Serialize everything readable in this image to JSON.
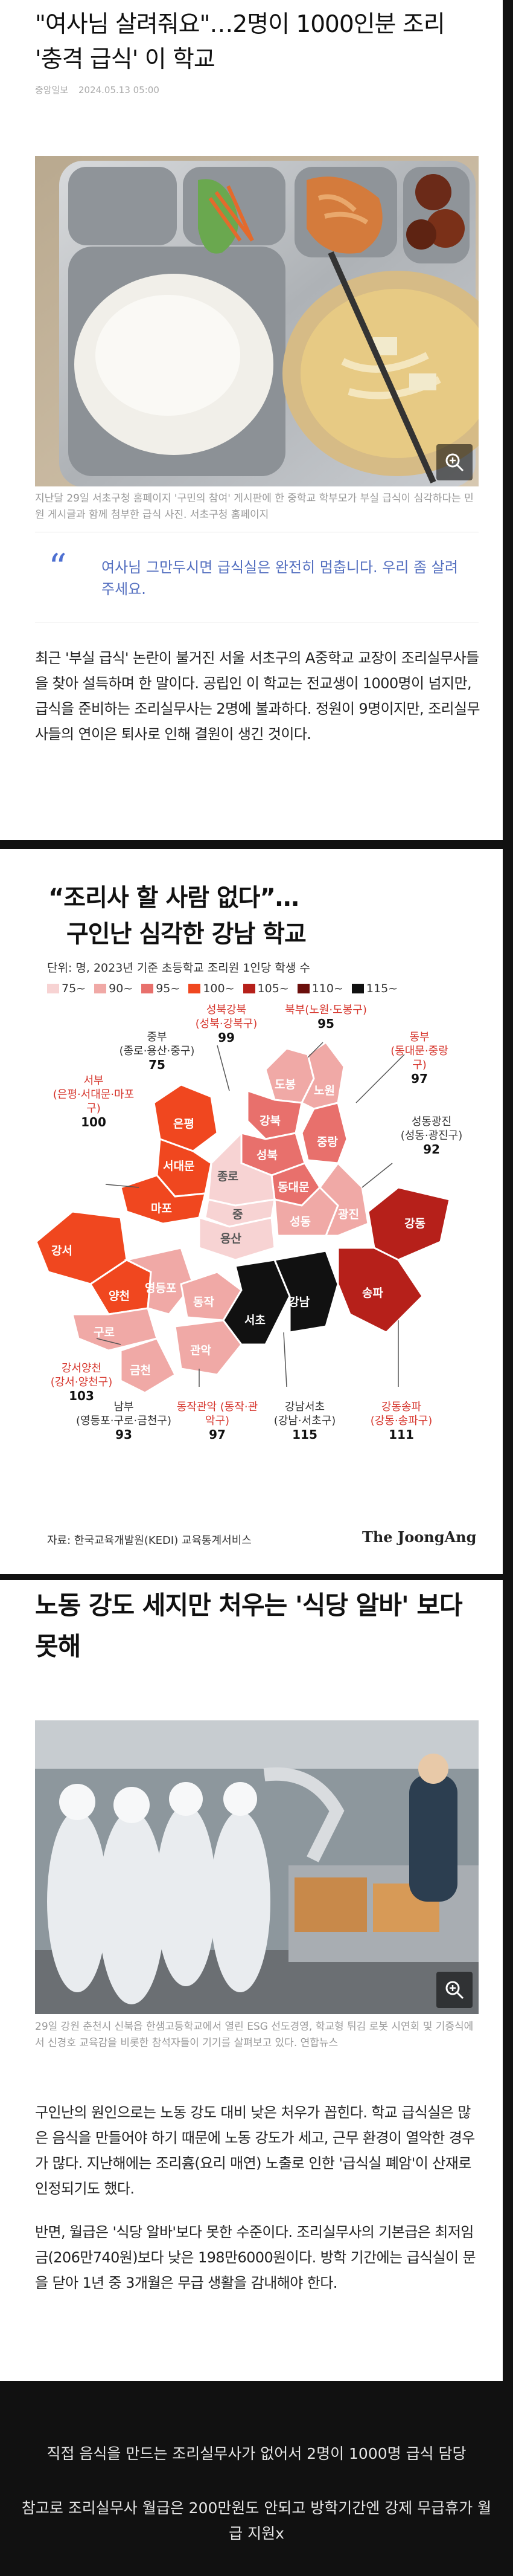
{
  "article1": {
    "headline": "\"여사님 살려줘요\"…2명이 1000인분 조리 '충격 급식' 이 학교",
    "source": "중앙일보",
    "date": "2024.05.13 05:00",
    "photo_caption": "지난달 29일 서초구청 홈페이지 '구민의 참여' 게시판에 한 중학교 학부모가 부실 급식이 심각하다는 민원 게시글과 함께 첨부한 급식 사진. 서초구청 홈페이지",
    "quote": "여사님 그만두시면 급식실은 완전히 멈춥니다. 우리 좀 살려주세요.",
    "paragraph": "최근 '부실 급식' 논란이 불거진 서울 서초구의 A중학교 교장이 조리실무사들을 찾아 설득하며 한 말이다. 공립인 이 학교는 전교생이 1000명이 넘지만, 급식을 준비하는 조리실무사는 2명에 불과하다. 정원이 9명이지만, 조리실무사들의 연이은 퇴사로 인해 결원이 생긴 것이다."
  },
  "infographic": {
    "title": "“조리사 할 사람 없다”…",
    "subtitle": "구인난 심각한 강남 학교",
    "unit": "단위: 명, 2023년 기준 초등학교 조리원 1인당 학생 수",
    "legend": [
      {
        "label": "75~",
        "color": "#f7d3d3"
      },
      {
        "label": "90~",
        "color": "#f0a9a6"
      },
      {
        "label": "95~",
        "color": "#e8706c"
      },
      {
        "label": "100~",
        "color": "#f0471f"
      },
      {
        "label": "105~",
        "color": "#b6201a"
      },
      {
        "label": "110~",
        "color": "#6b0f0c"
      },
      {
        "label": "115~",
        "color": "#111111"
      }
    ],
    "districts": [
      {
        "name": "성북강북",
        "sub": "(성북·강북구)",
        "value": "99"
      },
      {
        "name": "북부(노원·도봉구)",
        "sub": "",
        "value": "95"
      },
      {
        "name": "중부",
        "sub": "(종로·용산·중구)",
        "value": "75"
      },
      {
        "name": "동부",
        "sub": "(동대문·중랑구)",
        "value": "97"
      },
      {
        "name": "서부",
        "sub": "(은평·서대문·마포구)",
        "value": "100"
      },
      {
        "name": "성동광진",
        "sub": "(성동·광진구)",
        "value": "92"
      },
      {
        "name": "강서양천",
        "sub": "(강서·양천구)",
        "value": "103"
      },
      {
        "name": "남부",
        "sub": "(영등포·구로·금천구)",
        "value": "93"
      },
      {
        "name": "동작관악",
        "sub": "(동작·관악구)",
        "value": "97"
      },
      {
        "name": "강남서초",
        "sub": "(강남·서초구)",
        "value": "115"
      },
      {
        "name": "강동송파",
        "sub": "(강동·송파구)",
        "value": "111"
      }
    ],
    "map_names": {
      "dobong": "도봉",
      "nowon": "노원",
      "gangbuk": "강북",
      "eunpyeong": "은평",
      "seongbuk": "성북",
      "jungnang": "중랑",
      "jongno": "종로",
      "dongdaemun": "동대문",
      "seodaemun": "서대문",
      "mapo": "마포",
      "jung": "중",
      "seongdong": "성동",
      "gwangjin": "광진",
      "gangseo": "강서",
      "yongsan": "용산",
      "gangdong": "강동",
      "yangcheon": "양천",
      "yeongdeungpo": "영등포",
      "dongjak": "동작",
      "gangnam": "강남",
      "songpa": "송파",
      "guro": "구로",
      "seocho": "서초",
      "geumcheon": "금천",
      "gwanak": "관악"
    },
    "source": "자료: 한국교육개발원(KEDI) 교육통계서비스",
    "brand": "The JoongAng"
  },
  "article2": {
    "headline": "노동 강도 세지만 처우는 '식당 알바' 보다 못해",
    "photo_caption": "29일 강원 춘천시 신북읍 한샘고등학교에서 열린 ESG 선도경영, 학교형 튀김 로봇 시연회 및 기증식에서 신경호 교육감을 비롯한 참석자들이 기기를 살펴보고 있다. 연합뉴스",
    "paragraph1": "구인난의 원인으로는 노동 강도 대비 낮은 처우가 꼽힌다. 학교 급식실은 많은 음식을 만들어야 하기 때문에 노동 강도가 세고, 근무 환경이 열악한 경우가 많다. 지난해에는 조리흄(요리 매연) 노출로 인한 '급식실 폐암'이 산재로 인정되기도 했다.",
    "paragraph2": "반면, 월급은 '식당 알바'보다 못한 수준이다. 조리실무사의 기본급은 최저임금(206만740원)보다 낮은 198만6000원이다. 방학 기간에는 급식실이 문을 닫아 1년 중 3개월은 무급 생활을 감내해야 한다."
  },
  "footer": {
    "line1": "직접 음식을 만드는 조리실무사가 없어서 2명이 1000명 급식 담당",
    "line2": "참고로 조리실무사 월급은 200만원도 안되고 방학기간엔 강제 무급휴가 월급 지원x"
  }
}
